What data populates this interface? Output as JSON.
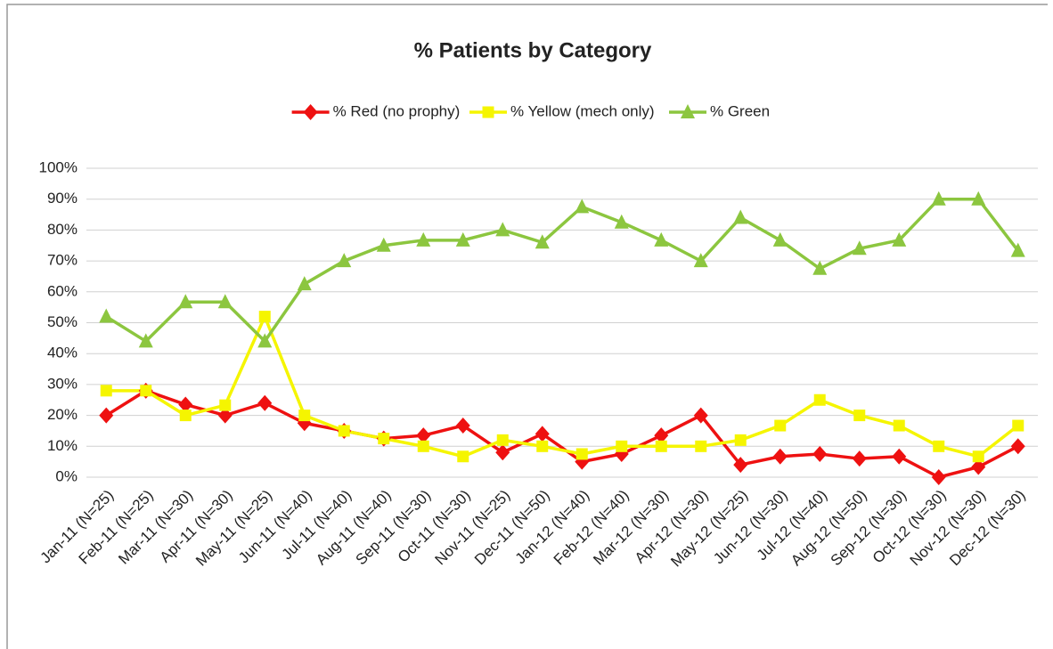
{
  "chart_data": {
    "type": "line",
    "title": "% Patients by Category",
    "categories": [
      "Jan-11 (N=25)",
      "Feb-11 (N=25)",
      "Mar-11 (N=30)",
      "Apr-11 (N=30)",
      "May-11 (N=25)",
      "Jun-11 (N=40)",
      "Jul-11 (N=40)",
      "Aug-11 (N=40)",
      "Sep-11 (N=30)",
      "Oct-11 (N=30)",
      "Nov-11 (N=25)",
      "Dec-11 (N=50)",
      "Jan-12 (N=40)",
      "Feb-12 (N=40)",
      "Mar-12 (N=30)",
      "Apr-12 (N=30)",
      "May-12 (N=25)",
      "Jun-12 (N=30)",
      "Jul-12 (N=40)",
      "Aug-12 (N=50)",
      "Sep-12 (N=30)",
      "Oct-12 (N=30)",
      "Nov-12 (N=30)",
      "Dec-12 (N=30)"
    ],
    "series": [
      {
        "name": "% Red (no prophy)",
        "color": "#ee1111",
        "marker": "diamond",
        "values": [
          20,
          28,
          23.5,
          20,
          24,
          17.5,
          15,
          12.5,
          13.5,
          16.7,
          8,
          14,
          5,
          7.5,
          13.5,
          20,
          4,
          6.7,
          7.5,
          6,
          6.7,
          0,
          3.3,
          10
        ]
      },
      {
        "name": "% Yellow (mech only)",
        "color": "#f5f500",
        "marker": "square",
        "values": [
          28,
          28,
          20,
          23.3,
          52,
          20,
          15,
          12.5,
          10,
          6.7,
          12,
          10,
          7.5,
          10,
          10,
          10,
          12,
          16.7,
          25,
          20,
          16.7,
          10,
          6.7,
          16.7
        ]
      },
      {
        "name": "% Green",
        "color": "#8cc63f",
        "marker": "triangle",
        "values": [
          52,
          44,
          56.7,
          56.7,
          44,
          62.5,
          70,
          75,
          76.7,
          76.7,
          80,
          76,
          87.5,
          82.5,
          76.7,
          70,
          84,
          76.7,
          67.5,
          74,
          76.7,
          90,
          90,
          73.3
        ]
      }
    ],
    "ylim": [
      0,
      100
    ],
    "yticks": [
      {
        "value": 0,
        "label": "0%"
      },
      {
        "value": 10,
        "label": "10%"
      },
      {
        "value": 20,
        "label": "20%"
      },
      {
        "value": 30,
        "label": "30%"
      },
      {
        "value": 40,
        "label": "40%"
      },
      {
        "value": 50,
        "label": "50%"
      },
      {
        "value": 60,
        "label": "60%"
      },
      {
        "value": 70,
        "label": "70%"
      },
      {
        "value": 80,
        "label": "80%"
      },
      {
        "value": 90,
        "label": "90%"
      },
      {
        "value": 100,
        "label": "100%"
      }
    ],
    "grid": true,
    "legend": "top"
  }
}
